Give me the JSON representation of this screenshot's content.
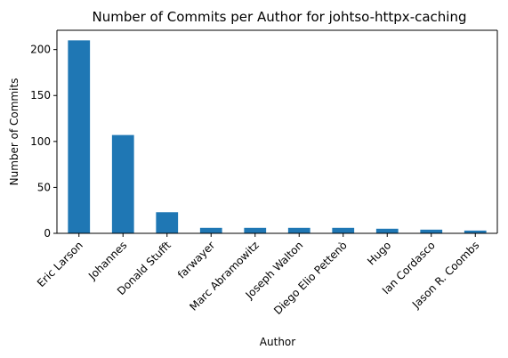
{
  "chart_data": {
    "type": "bar",
    "title": "Number of Commits per Author for johtso-httpx-caching",
    "xlabel": "Author",
    "ylabel": "Number of Commits",
    "categories": [
      "Eric Larson",
      "Johannes",
      "Donald Stufft",
      "farwayer",
      "Marc Abramowitz",
      "Joseph Walton",
      "Diego Elio Pettenò",
      "Hugo",
      "Ian Cordasco",
      "Jason R. Coombs"
    ],
    "values": [
      210,
      107,
      23,
      6,
      6,
      6,
      6,
      5,
      4,
      3
    ],
    "ylim": [
      0,
      221
    ],
    "yticks": [
      0,
      50,
      100,
      150,
      200
    ],
    "grid": false,
    "legend": "none",
    "bar_color": "#1f77b4"
  }
}
